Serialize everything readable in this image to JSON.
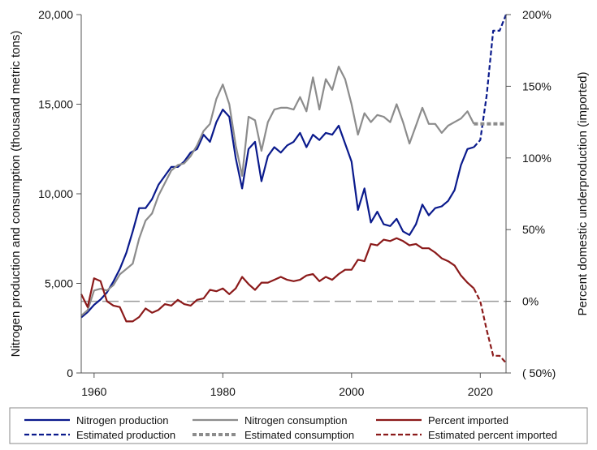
{
  "chart_data": {
    "type": "line",
    "x_range": [
      1958,
      2024
    ],
    "x_ticks": [
      "1960",
      "1980",
      "2000",
      "2020"
    ],
    "left_axis": {
      "label": "Nitrogen production and consumption (thousand metric tons)",
      "ylim": [
        0,
        20000
      ],
      "tick_values": [
        0,
        5000,
        10000,
        15000,
        20000
      ],
      "tick_labels": [
        "0",
        "5,000",
        "10,000",
        "15,000",
        "20,000"
      ]
    },
    "right_axis": {
      "label": "Percent domestic underproduction (imported)",
      "ylim": [
        -50,
        200
      ],
      "tick_values": [
        -50,
        0,
        50,
        100,
        150,
        200
      ],
      "tick_labels": [
        "(   50%)",
        "0%",
        "50%",
        "100%",
        "150%",
        "200%"
      ]
    },
    "zero_reference_line": {
      "axis": "right",
      "value": 0
    },
    "colors": {
      "production": "#0a1a8c",
      "consumption": "#8c8c8c",
      "imported": "#8b1a1a",
      "reference": "#9a9a9a"
    },
    "series": [
      {
        "name": "Nitrogen production",
        "axis": "left",
        "style": "solid",
        "x": [
          1958,
          1959,
          1960,
          1961,
          1962,
          1963,
          1964,
          1965,
          1966,
          1967,
          1968,
          1969,
          1970,
          1971,
          1972,
          1973,
          1974,
          1975,
          1976,
          1977,
          1978,
          1979,
          1980,
          1981,
          1982,
          1983,
          1984,
          1985,
          1986,
          1987,
          1988,
          1989,
          1990,
          1991,
          1992,
          1993,
          1994,
          1995,
          1996,
          1997,
          1998,
          1999,
          2000,
          2001,
          2002,
          2003,
          2004,
          2005,
          2006,
          2007,
          2008,
          2009,
          2010,
          2011,
          2012,
          2013,
          2014,
          2015,
          2016,
          2017,
          2018,
          2019
        ],
        "values": [
          3100,
          3400,
          3800,
          4100,
          4500,
          5100,
          5800,
          6700,
          7900,
          9200,
          9200,
          9700,
          10500,
          11000,
          11500,
          11500,
          11800,
          12300,
          12500,
          13300,
          12900,
          14000,
          14700,
          14300,
          12000,
          10300,
          12500,
          12900,
          10700,
          12100,
          12600,
          12300,
          12700,
          12900,
          13400,
          12600,
          13300,
          13000,
          13400,
          13300,
          13800,
          12800,
          11800,
          9100,
          10300,
          8400,
          9000,
          8300,
          8200,
          8600,
          7900,
          7700,
          8300,
          9400,
          8800,
          9200,
          9300,
          9600,
          10200,
          11600,
          12500,
          12600
        ]
      },
      {
        "name": "Nitrogen consumption",
        "axis": "left",
        "style": "solid",
        "x": [
          1958,
          1959,
          1960,
          1961,
          1962,
          1963,
          1964,
          1965,
          1966,
          1967,
          1968,
          1969,
          1970,
          1971,
          1972,
          1973,
          1974,
          1975,
          1976,
          1977,
          1978,
          1979,
          1980,
          1981,
          1982,
          1983,
          1984,
          1985,
          1986,
          1987,
          1988,
          1989,
          1990,
          1991,
          1992,
          1993,
          1994,
          1995,
          1996,
          1997,
          1998,
          1999,
          2000,
          2001,
          2002,
          2003,
          2004,
          2005,
          2006,
          2007,
          2008,
          2009,
          2010,
          2011,
          2012,
          2013,
          2014,
          2015,
          2016,
          2017,
          2018,
          2019
        ],
        "values": [
          3200,
          3500,
          4600,
          4700,
          4600,
          4900,
          5500,
          5800,
          6100,
          7500,
          8500,
          8900,
          9900,
          10600,
          11300,
          11600,
          11700,
          12100,
          12700,
          13500,
          13900,
          15300,
          16100,
          15000,
          12700,
          11000,
          14300,
          14100,
          12400,
          14000,
          14700,
          14800,
          14800,
          14700,
          15400,
          14600,
          16500,
          14700,
          16400,
          15800,
          17100,
          16400,
          15000,
          13300,
          14500,
          14000,
          14400,
          14300,
          14000,
          15000,
          14000,
          12800,
          13800,
          14800,
          13900,
          13900,
          13400,
          13800,
          14000,
          14200,
          14600,
          13900
        ]
      },
      {
        "name": "Percent imported",
        "axis": "right",
        "style": "solid",
        "x": [
          1958,
          1959,
          1960,
          1961,
          1962,
          1963,
          1964,
          1965,
          1966,
          1967,
          1968,
          1969,
          1970,
          1971,
          1972,
          1973,
          1974,
          1975,
          1976,
          1977,
          1978,
          1979,
          1980,
          1981,
          1982,
          1983,
          1984,
          1985,
          1986,
          1987,
          1988,
          1989,
          1990,
          1991,
          1992,
          1993,
          1994,
          1995,
          1996,
          1997,
          1998,
          1999,
          2000,
          2001,
          2002,
          2003,
          2004,
          2005,
          2006,
          2007,
          2008,
          2009,
          2010,
          2011,
          2012,
          2013,
          2014,
          2015,
          2016,
          2017,
          2018,
          2019
        ],
        "values": [
          5,
          -4,
          16,
          14,
          0,
          -3,
          -4,
          -14,
          -14,
          -11,
          -5,
          -8,
          -6,
          -2,
          -3,
          1,
          -2,
          -3,
          1,
          2,
          8,
          7,
          9,
          5,
          9,
          17,
          12,
          8,
          13,
          13,
          15,
          17,
          15,
          14,
          15,
          18,
          19,
          14,
          17,
          15,
          19,
          22,
          22,
          29,
          28,
          40,
          39,
          43,
          42,
          44,
          42,
          39,
          40,
          37,
          37,
          34,
          30,
          28,
          25,
          18,
          13,
          9
        ]
      },
      {
        "name": "Estimated production",
        "axis": "left",
        "style": "dashed",
        "x": [
          2019,
          2020,
          2021,
          2022,
          2023,
          2024
        ],
        "values": [
          12600,
          13000,
          15500,
          19100,
          19100,
          20000
        ]
      },
      {
        "name": "Estimated consumption",
        "axis": "left",
        "style": "dashed",
        "x": [
          2019,
          2020,
          2021,
          2022,
          2023,
          2024
        ],
        "values": [
          13900,
          13900,
          13900,
          13900,
          13900,
          13900
        ]
      },
      {
        "name": "Estimated percent imported",
        "axis": "right",
        "style": "dashed",
        "x": [
          2019,
          2020,
          2021,
          2022,
          2023,
          2024
        ],
        "values": [
          9,
          0,
          -20,
          -38,
          -38,
          -43
        ]
      }
    ],
    "legend": {
      "position": "bottom",
      "entries": [
        "Nitrogen production",
        "Nitrogen consumption",
        "Percent imported",
        "Estimated production",
        "Estimated consumption",
        "Estimated percent imported"
      ]
    }
  }
}
